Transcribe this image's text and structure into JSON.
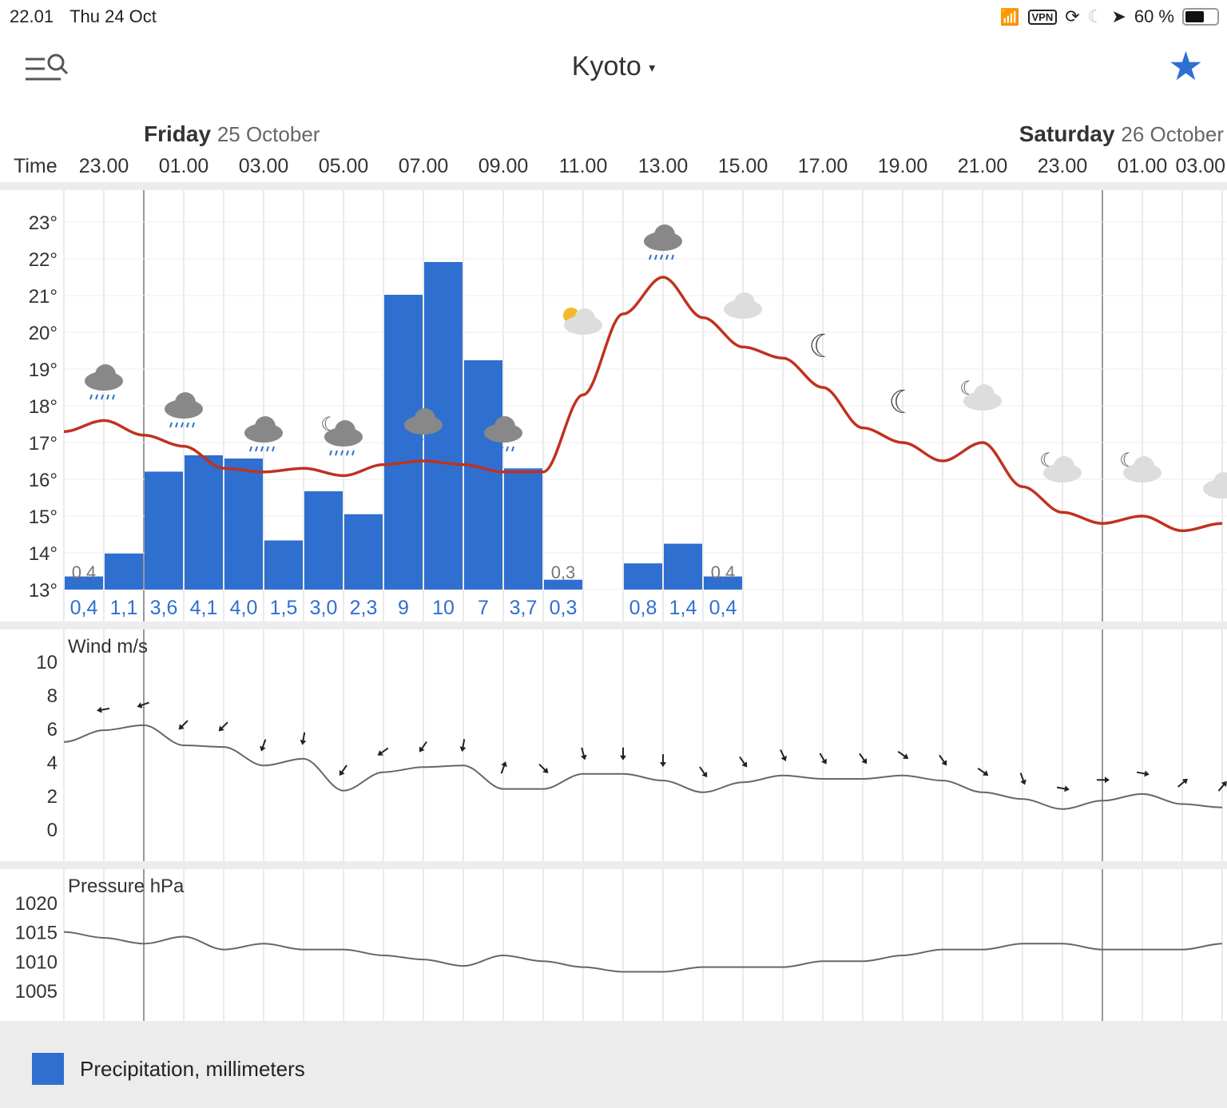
{
  "status_bar": {
    "time": "22.01",
    "date": "Thu 24 Oct",
    "vpn": "VPN",
    "battery": "60 %",
    "battery_level": 0.6
  },
  "header": {
    "location": "Kyoto",
    "caret": "▾",
    "menu_icon": "menu-search-icon",
    "favorite_icon": "star-icon"
  },
  "days": [
    {
      "name": "Friday",
      "date": "25 October"
    },
    {
      "name": "Saturday",
      "date": "26 October"
    }
  ],
  "time_label": "Time",
  "times": [
    "23.00",
    "01.00",
    "03.00",
    "05.00",
    "07.00",
    "09.00",
    "11.00",
    "13.00",
    "15.00",
    "17.00",
    "19.00",
    "21.00",
    "23.00",
    "01.00",
    "03.00"
  ],
  "chart_data": [
    {
      "type": "bar+line",
      "title": "Temperature and precipitation",
      "y_ticks": [
        "23°",
        "22°",
        "21°",
        "20°",
        "19°",
        "18°",
        "17°",
        "16°",
        "15°",
        "14°",
        "13°"
      ],
      "ylim": [
        13,
        23
      ],
      "hours": [
        "22",
        "23",
        "00",
        "01",
        "02",
        "03",
        "04",
        "05",
        "06",
        "07",
        "08",
        "09",
        "10",
        "11",
        "12",
        "13",
        "14",
        "15",
        "16",
        "17",
        "18",
        "19",
        "20",
        "21",
        "22",
        "23",
        "00",
        "01",
        "02",
        "03"
      ],
      "temperature": [
        17.3,
        17.6,
        17.2,
        16.9,
        16.3,
        16.2,
        16.3,
        16.1,
        16.4,
        16.5,
        16.4,
        16.2,
        16.2,
        18.3,
        20.5,
        21.5,
        20.4,
        19.6,
        19.3,
        18.5,
        17.4,
        17.0,
        16.5,
        17.0,
        15.8,
        15.1,
        14.8,
        15.0,
        14.6,
        14.8
      ],
      "precipitation": [
        0.4,
        1.1,
        3.6,
        4.1,
        4.0,
        1.5,
        3.0,
        2.3,
        9,
        10,
        7,
        3.7,
        0.3,
        0,
        0.8,
        1.4,
        0.4
      ],
      "precipitation_labels": [
        "0,4",
        "1,1",
        "3,6",
        "4,1",
        "4,0",
        "1,5",
        "3,0",
        "2,3",
        "9",
        "10",
        "7",
        "3,7",
        "0,3",
        "",
        "0,8",
        "1,4",
        "0,4"
      ],
      "bar_annotations": [
        {
          "index": 0,
          "text": "0,4"
        },
        {
          "index": 12,
          "text": "0,3"
        },
        {
          "index": 16,
          "text": "0,4"
        }
      ],
      "weather_icons": [
        "rain",
        "rain",
        "rain",
        "night-rain",
        "rain",
        "rain",
        "partly-sunny",
        "rain",
        "cloudy",
        "clear-night",
        "clear-night",
        "night-cloudy",
        "night-cloudy",
        "night-cloudy",
        "cloudy"
      ]
    },
    {
      "type": "line",
      "title": "Wind m/s",
      "y_ticks": [
        "10",
        "8",
        "6",
        "4",
        "2",
        "0"
      ],
      "ylim": [
        0,
        10
      ],
      "speed": [
        5.2,
        5.9,
        6.2,
        5.0,
        4.9,
        3.8,
        4.2,
        2.3,
        3.4,
        3.7,
        3.8,
        2.4,
        2.4,
        3.3,
        3.3,
        2.9,
        2.2,
        2.8,
        3.2,
        3.0,
        3.0,
        3.2,
        2.9,
        2.2,
        1.8,
        1.2,
        1.7,
        2.1,
        1.5,
        1.3
      ],
      "direction_arrows_deg": [
        260,
        250,
        225,
        225,
        200,
        190,
        215,
        235,
        215,
        190,
        20,
        135,
        165,
        180,
        180,
        145,
        145,
        155,
        150,
        145,
        125,
        145,
        125,
        160,
        100,
        90,
        100,
        50,
        40
      ]
    },
    {
      "type": "line",
      "title": "Pressure hPa",
      "y_ticks": [
        "1020",
        "1015",
        "1010",
        "1005"
      ],
      "ylim": [
        1005,
        1020
      ],
      "pressure": [
        1015,
        1014,
        1013,
        1014.2,
        1012,
        1013,
        1012,
        1012,
        1011,
        1010.3,
        1009.2,
        1011,
        1010,
        1009,
        1008.2,
        1008.2,
        1009,
        1009,
        1009,
        1010,
        1010,
        1011,
        1012,
        1012,
        1013,
        1013,
        1012,
        1012,
        1012,
        1013
      ]
    }
  ],
  "legend": {
    "label": "Precipitation, millimeters",
    "color": "#2f6fd0"
  },
  "colors": {
    "temperature": "#c0321f",
    "bars": "#2f6fd0",
    "accent": "#2e6fd4"
  }
}
